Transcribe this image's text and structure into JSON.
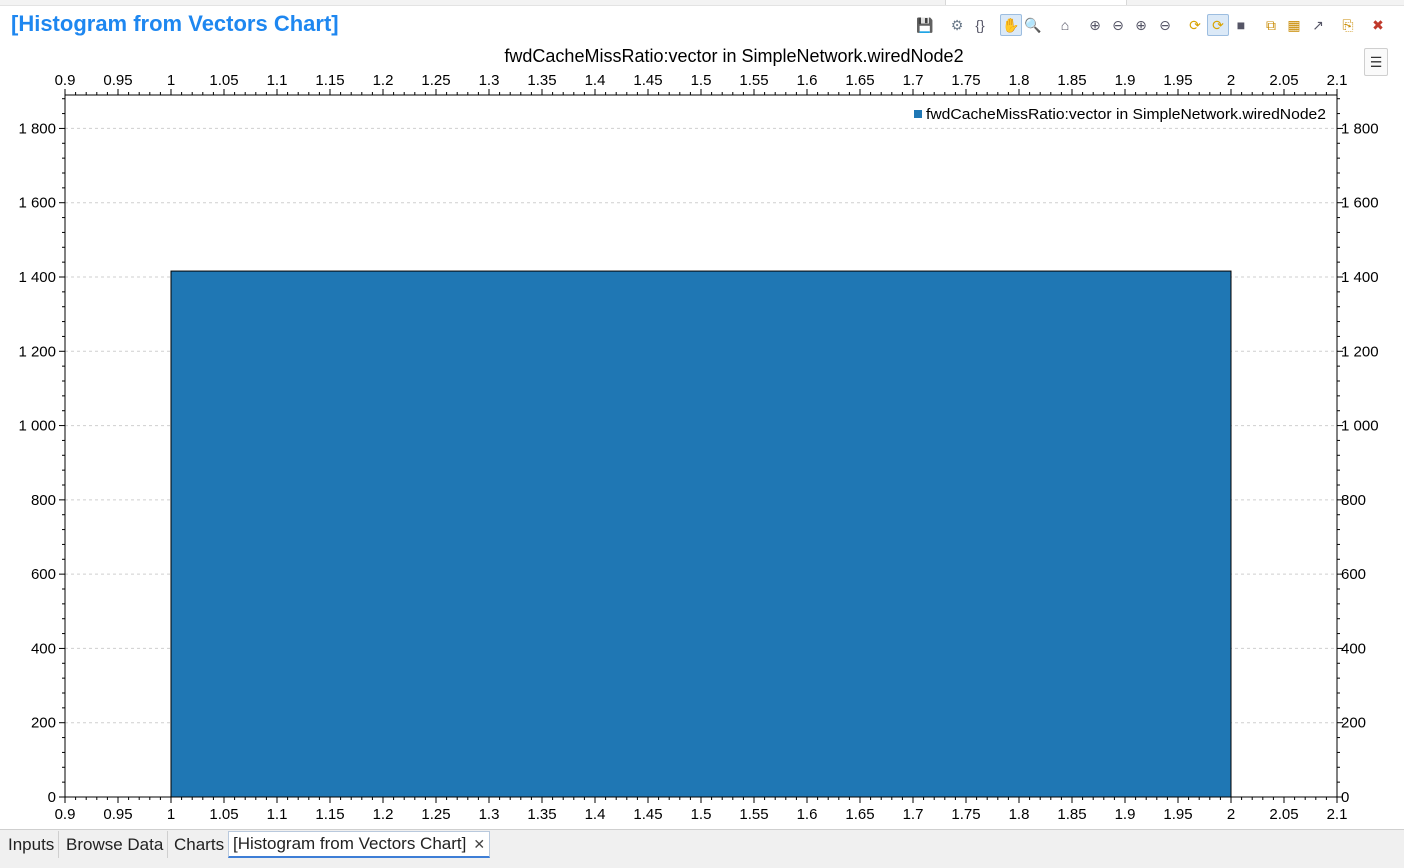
{
  "window": {
    "title": "[Histogram from Vectors Chart]"
  },
  "toolbar": {
    "buttons": [
      {
        "name": "save-icon",
        "glyph": "💾"
      },
      {
        "name": "gear-icon",
        "glyph": "⚙"
      },
      {
        "name": "braces-icon",
        "glyph": "{}"
      },
      {
        "name": "pan-hand-icon",
        "glyph": "✋"
      },
      {
        "name": "zoom-icon",
        "glyph": "🔍"
      },
      {
        "name": "home-icon",
        "glyph": "⌂"
      },
      {
        "name": "zoom-in-both-icon",
        "glyph": "⊕"
      },
      {
        "name": "zoom-out-both-icon",
        "glyph": "⊖"
      },
      {
        "name": "zoom-in-x-icon",
        "glyph": "⊕"
      },
      {
        "name": "zoom-out-x-icon",
        "glyph": "⊖"
      },
      {
        "name": "refresh-icon",
        "glyph": "⟳"
      },
      {
        "name": "auto-refresh-icon",
        "glyph": "⟳"
      },
      {
        "name": "stop-icon",
        "glyph": "■"
      },
      {
        "name": "copy-icon",
        "glyph": "⧉"
      },
      {
        "name": "chart-export-icon",
        "glyph": "▦"
      },
      {
        "name": "export-image-icon",
        "glyph": "↗"
      },
      {
        "name": "open-file-icon",
        "glyph": "⎘"
      },
      {
        "name": "close-icon",
        "glyph": "✖"
      }
    ]
  },
  "side": {
    "list_icon": "☰"
  },
  "chart_data": {
    "type": "bar",
    "title": "fwdCacheMissRatio:vector in SimpleNetwork.wiredNode2",
    "legend": {
      "entries": [
        "fwdCacheMissRatio:vector in SimpleNetwork.wiredNode2"
      ],
      "position": "top-right",
      "color": "#1f77b4"
    },
    "xlim": [
      0.9,
      2.1
    ],
    "ylim": [
      0,
      1890
    ],
    "x_ticks": [
      "0.9",
      "0.95",
      "1",
      "1.05",
      "1.1",
      "1.15",
      "1.2",
      "1.25",
      "1.3",
      "1.35",
      "1.4",
      "1.45",
      "1.5",
      "1.55",
      "1.6",
      "1.65",
      "1.7",
      "1.75",
      "1.8",
      "1.85",
      "1.9",
      "1.95",
      "2",
      "2.05",
      "2.1"
    ],
    "y_ticks": [
      {
        "value": 0,
        "label": "0"
      },
      {
        "value": 200,
        "label": "200"
      },
      {
        "value": 400,
        "label": "400"
      },
      {
        "value": 600,
        "label": "600"
      },
      {
        "value": 800,
        "label": "800"
      },
      {
        "value": 1000,
        "label": "1 000"
      },
      {
        "value": 1200,
        "label": "1 200"
      },
      {
        "value": 1400,
        "label": "1 400"
      },
      {
        "value": 1600,
        "label": "1 600"
      },
      {
        "value": 1800,
        "label": "1 800"
      }
    ],
    "series": [
      {
        "name": "fwdCacheMissRatio:vector in SimpleNetwork.wiredNode2",
        "bins": [
          {
            "x_start": 1,
            "x_end": 2,
            "value": 1416
          }
        ]
      }
    ],
    "grid": true,
    "bar_color": "#1f77b4"
  },
  "tabs": [
    {
      "label": "Inputs",
      "active": false
    },
    {
      "label": "Browse Data",
      "active": false
    },
    {
      "label": "Charts",
      "active": false
    },
    {
      "label": "[Histogram from Vectors Chart]",
      "active": true,
      "close": "✕"
    }
  ]
}
